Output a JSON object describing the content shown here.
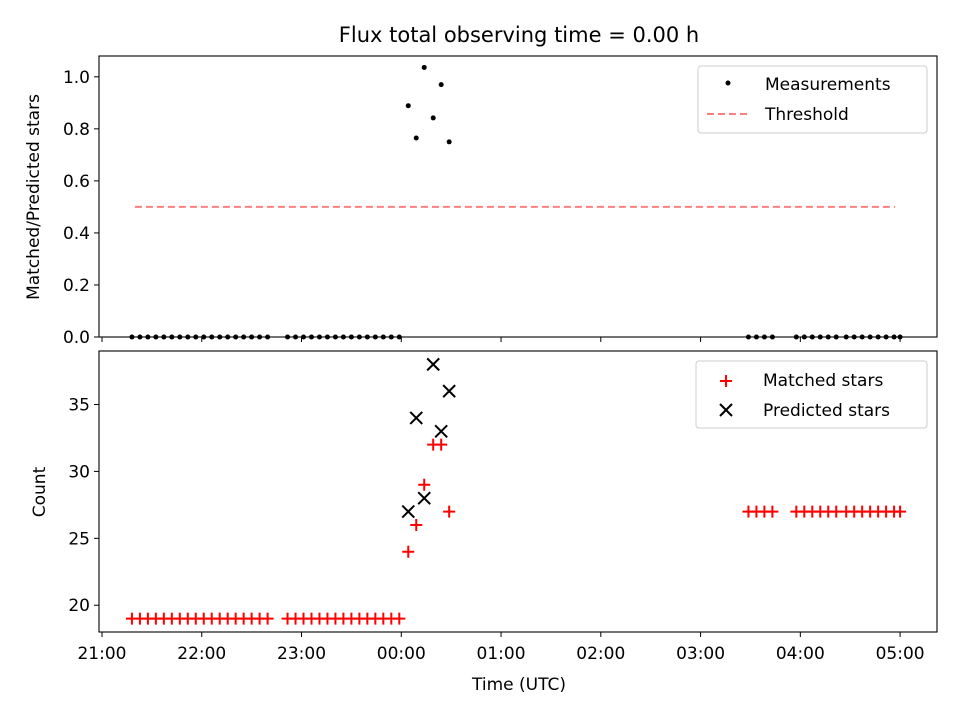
{
  "title": "Flux total observing time = 0.00 h",
  "x_axis": {
    "label": "Time (UTC)",
    "ticks": [
      "21:00",
      "22:00",
      "23:00",
      "00:00",
      "01:00",
      "02:00",
      "03:00",
      "04:00",
      "05:00"
    ]
  },
  "chart_data": [
    {
      "type": "scatter",
      "ylabel": "Matched/Predicted stars",
      "ylim": [
        0,
        1.08
      ],
      "xlim_hours": [
        20.97,
        29.37
      ],
      "yticks": [
        "0.0",
        "0.2",
        "0.4",
        "0.6",
        "0.8",
        "1.0"
      ],
      "ytick_values": [
        0,
        0.2,
        0.4,
        0.6,
        0.8,
        1.0
      ],
      "legend_position": "top-right",
      "series": [
        {
          "name": "Measurements",
          "marker": "dot",
          "color": "#000000",
          "x_hours": [
            21.3,
            21.38,
            21.46,
            21.54,
            21.62,
            21.7,
            21.78,
            21.86,
            21.94,
            22.02,
            22.1,
            22.18,
            22.26,
            22.34,
            22.42,
            22.5,
            22.58,
            22.66,
            22.86,
            22.94,
            23.02,
            23.1,
            23.18,
            23.26,
            23.34,
            23.42,
            23.5,
            23.58,
            23.66,
            23.74,
            23.82,
            23.9,
            23.98,
            24.07,
            24.15,
            24.23,
            24.32,
            24.4,
            24.48,
            27.48,
            27.56,
            27.64,
            27.72,
            27.96,
            28.04,
            28.12,
            28.2,
            28.28,
            28.36,
            28.46,
            28.54,
            28.62,
            28.7,
            28.78,
            28.86,
            28.94,
            29.0
          ],
          "y": [
            0,
            0,
            0,
            0,
            0,
            0,
            0,
            0,
            0,
            0,
            0,
            0,
            0,
            0,
            0,
            0,
            0,
            0,
            0,
            0,
            0,
            0,
            0,
            0,
            0,
            0,
            0,
            0,
            0,
            0,
            0,
            0,
            0,
            0.889,
            0.765,
            1.036,
            0.842,
            0.97,
            0.75,
            0,
            0,
            0,
            0,
            0,
            0,
            0,
            0,
            0,
            0,
            0,
            0,
            0,
            0,
            0,
            0,
            0,
            0
          ]
        },
        {
          "name": "Threshold",
          "type": "line",
          "style": "dashed",
          "color": "#ff7f7f",
          "x_hours": [
            21.33,
            28.95
          ],
          "y": [
            0.5,
            0.5
          ]
        }
      ]
    },
    {
      "type": "scatter",
      "ylabel": "Count",
      "ylim": [
        18.0,
        39.0
      ],
      "xlim_hours": [
        20.97,
        29.37
      ],
      "yticks": [
        "20",
        "25",
        "30",
        "35"
      ],
      "ytick_values": [
        20,
        25,
        30,
        35
      ],
      "legend_position": "top-right",
      "series": [
        {
          "name": "Matched stars",
          "marker": "plus",
          "color": "#ff0000",
          "x_hours": [
            21.3,
            21.38,
            21.46,
            21.54,
            21.62,
            21.7,
            21.78,
            21.86,
            21.94,
            22.02,
            22.1,
            22.18,
            22.26,
            22.34,
            22.42,
            22.5,
            22.58,
            22.66,
            22.86,
            22.94,
            23.02,
            23.1,
            23.18,
            23.26,
            23.34,
            23.42,
            23.5,
            23.58,
            23.66,
            23.74,
            23.82,
            23.9,
            23.98,
            24.07,
            24.15,
            24.23,
            24.32,
            24.4,
            24.48,
            27.48,
            27.56,
            27.64,
            27.72,
            27.96,
            28.04,
            28.12,
            28.2,
            28.28,
            28.36,
            28.46,
            28.54,
            28.62,
            28.7,
            28.78,
            28.86,
            28.94,
            29.0
          ],
          "y": [
            19,
            19,
            19,
            19,
            19,
            19,
            19,
            19,
            19,
            19,
            19,
            19,
            19,
            19,
            19,
            19,
            19,
            19,
            19,
            19,
            19,
            19,
            19,
            19,
            19,
            19,
            19,
            19,
            19,
            19,
            19,
            19,
            19,
            24,
            26,
            29,
            32,
            32,
            27,
            27,
            27,
            27,
            27,
            27,
            27,
            27,
            27,
            27,
            27,
            27,
            27,
            27,
            27,
            27,
            27,
            27,
            27
          ]
        },
        {
          "name": "Predicted stars",
          "marker": "x",
          "color": "#000000",
          "x_hours": [
            24.07,
            24.15,
            24.23,
            24.32,
            24.4,
            24.48
          ],
          "y": [
            27,
            34,
            28,
            38,
            33,
            36
          ]
        }
      ]
    }
  ]
}
